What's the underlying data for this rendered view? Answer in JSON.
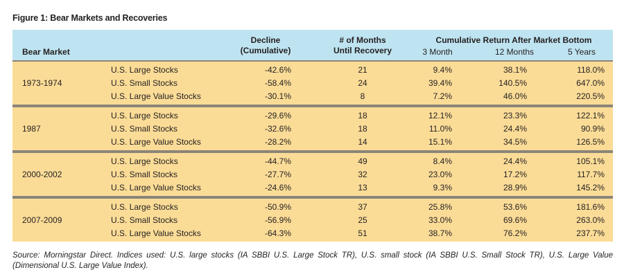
{
  "figure_title": "Figure 1: Bear Markets and Recoveries",
  "headers": {
    "bear_market": "Bear Market",
    "decline_line1": "Decline",
    "decline_line2": "(Cumulative)",
    "months_line1": "# of Months",
    "months_line2": "Until Recovery",
    "cumulative": "Cumulative Return After Market Bottom",
    "three_month": "3 Month",
    "twelve_months": "12 Months",
    "five_years": "5 Years"
  },
  "bear_markets": [
    {
      "period": "1973-1974",
      "rows": [
        {
          "asset": "U.S. Large Stocks",
          "decline": "-42.6%",
          "months": "21",
          "m3": "9.4%",
          "m12": "38.1%",
          "y5": "118.0%"
        },
        {
          "asset": "U.S. Small Stocks",
          "decline": "-58.4%",
          "months": "24",
          "m3": "39.4%",
          "m12": "140.5%",
          "y5": "647.0%"
        },
        {
          "asset": "U.S. Large Value Stocks",
          "decline": "-30.1%",
          "months": "8",
          "m3": "7.2%",
          "m12": "46.0%",
          "y5": "220.5%"
        }
      ]
    },
    {
      "period": "1987",
      "rows": [
        {
          "asset": "U.S. Large Stocks",
          "decline": "-29.6%",
          "months": "18",
          "m3": "12.1%",
          "m12": "23.3%",
          "y5": "122.1%"
        },
        {
          "asset": "U.S. Small Stocks",
          "decline": "-32.6%",
          "months": "18",
          "m3": "11.0%",
          "m12": "24.4%",
          "y5": "90.9%"
        },
        {
          "asset": "U.S. Large Value Stocks",
          "decline": "-28.2%",
          "months": "14",
          "m3": "15.1%",
          "m12": "34.5%",
          "y5": "126.5%"
        }
      ]
    },
    {
      "period": "2000-2002",
      "rows": [
        {
          "asset": "U.S. Large Stocks",
          "decline": "-44.7%",
          "months": "49",
          "m3": "8.4%",
          "m12": "24.4%",
          "y5": "105.1%"
        },
        {
          "asset": "U.S. Small Stocks",
          "decline": "-27.7%",
          "months": "32",
          "m3": "23.0%",
          "m12": "17.2%",
          "y5": "117.7%"
        },
        {
          "asset": "U.S. Large Value Stocks",
          "decline": "-24.6%",
          "months": "13",
          "m3": "9.3%",
          "m12": "28.9%",
          "y5": "145.2%"
        }
      ]
    },
    {
      "period": "2007-2009",
      "rows": [
        {
          "asset": "U.S. Large Stocks",
          "decline": "-50.9%",
          "months": "37",
          "m3": "25.8%",
          "m12": "53.6%",
          "y5": "181.6%"
        },
        {
          "asset": "U.S. Small Stocks",
          "decline": "-56.9%",
          "months": "25",
          "m3": "33.0%",
          "m12": "69.6%",
          "y5": "263.0%"
        },
        {
          "asset": "U.S. Large Value Stocks",
          "decline": "-64.3%",
          "months": "51",
          "m3": "38.7%",
          "m12": "76.2%",
          "y5": "237.7%"
        }
      ]
    }
  ],
  "source_note": "Source: Morningstar Direct. Indices used: U.S. large stocks (IA SBBI U.S. Large Stock TR), U.S. small stock (IA SBBI U.S. Small Stock TR), U.S. Large Value (Dimensional U.S. Large Value Index).",
  "colors": {
    "header_bg": "#bfe4f1",
    "band_bg": "#fbdc97",
    "separator": "#8b8579",
    "text": "#231f20"
  }
}
